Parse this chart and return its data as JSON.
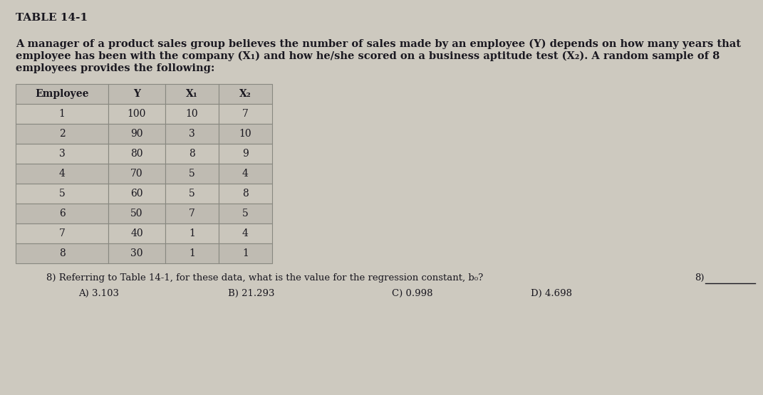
{
  "title": "TABLE 14-1",
  "desc_line1": "A manager of a product sales group believes the number of sales made by an employee (Y) depends on how many years that",
  "desc_line2": "employee has been with the company (X₁) and how he/she scored on a business aptitude test (X₂). A random sample of 8",
  "desc_line3": "employees provides the following:",
  "table_headers": [
    "Employee",
    "Y",
    "X₁",
    "X₂"
  ],
  "table_data": [
    [
      1,
      100,
      10,
      7
    ],
    [
      2,
      90,
      3,
      10
    ],
    [
      3,
      80,
      8,
      9
    ],
    [
      4,
      70,
      5,
      4
    ],
    [
      5,
      60,
      5,
      8
    ],
    [
      6,
      50,
      7,
      5
    ],
    [
      7,
      40,
      1,
      4
    ],
    [
      8,
      30,
      1,
      1
    ]
  ],
  "question_text": "8) Referring to Table 14-1, for these data, what is the value for the regression constant, b₀?",
  "answer_label": "8)",
  "choices": [
    "A) 3.103",
    "B) 21.293",
    "C) 0.998",
    "D) 4.698"
  ],
  "bg_color": "#cdc9bf",
  "table_header_bg": "#c0bcb3",
  "table_row_bg1": "#cac6bc",
  "table_row_bg2": "#bfbbb2",
  "border_color": "#888880",
  "text_color": "#1a1820"
}
